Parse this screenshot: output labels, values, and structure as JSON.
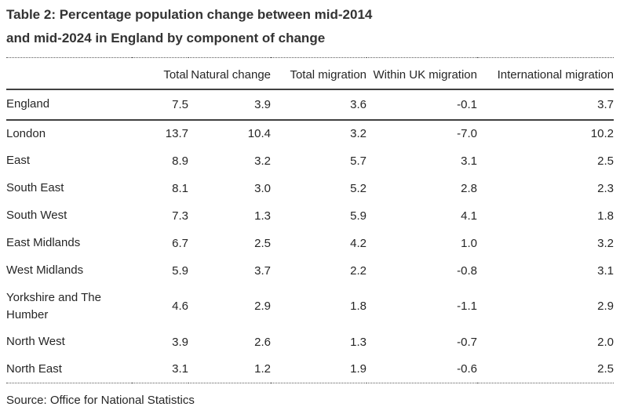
{
  "title_lines": [
    "Table 2: Percentage population change between mid-2014",
    "and mid-2024 in England by component of change"
  ],
  "chart_data": {
    "type": "table",
    "title": "Table 2: Percentage population change between mid-2014 and mid-2024 in England by component of change",
    "columns": [
      "Total",
      "Natural change",
      "Total migration",
      "Within UK migration",
      "International migration"
    ],
    "rows": [
      {
        "name": "England",
        "values": [
          "7.5",
          "3.9",
          "3.6",
          "-0.1",
          "3.7"
        ]
      },
      {
        "name": "London",
        "values": [
          "13.7",
          "10.4",
          "3.2",
          "-7.0",
          "10.2"
        ]
      },
      {
        "name": "East",
        "values": [
          "8.9",
          "3.2",
          "5.7",
          "3.1",
          "2.5"
        ]
      },
      {
        "name": "South East",
        "values": [
          "8.1",
          "3.0",
          "5.2",
          "2.8",
          "2.3"
        ]
      },
      {
        "name": "South West",
        "values": [
          "7.3",
          "1.3",
          "5.9",
          "4.1",
          "1.8"
        ]
      },
      {
        "name": "East Midlands",
        "values": [
          "6.7",
          "2.5",
          "4.2",
          "1.0",
          "3.2"
        ]
      },
      {
        "name": "West Midlands",
        "values": [
          "5.9",
          "3.7",
          "2.2",
          "-0.8",
          "3.1"
        ]
      },
      {
        "name": "Yorkshire and The Humber",
        "values": [
          "4.6",
          "2.9",
          "1.8",
          "-1.1",
          "2.9"
        ]
      },
      {
        "name": "North West",
        "values": [
          "3.9",
          "2.6",
          "1.3",
          "-0.7",
          "2.0"
        ]
      },
      {
        "name": "North East",
        "values": [
          "3.1",
          "1.2",
          "1.9",
          "-0.6",
          "2.5"
        ]
      }
    ],
    "source": "Source: Office for National Statistics"
  },
  "colors": {
    "text": "#262626",
    "title_text": "#333333",
    "solid_rule": "#404040",
    "dotted_rule": "#595959",
    "background": "#ffffff"
  }
}
